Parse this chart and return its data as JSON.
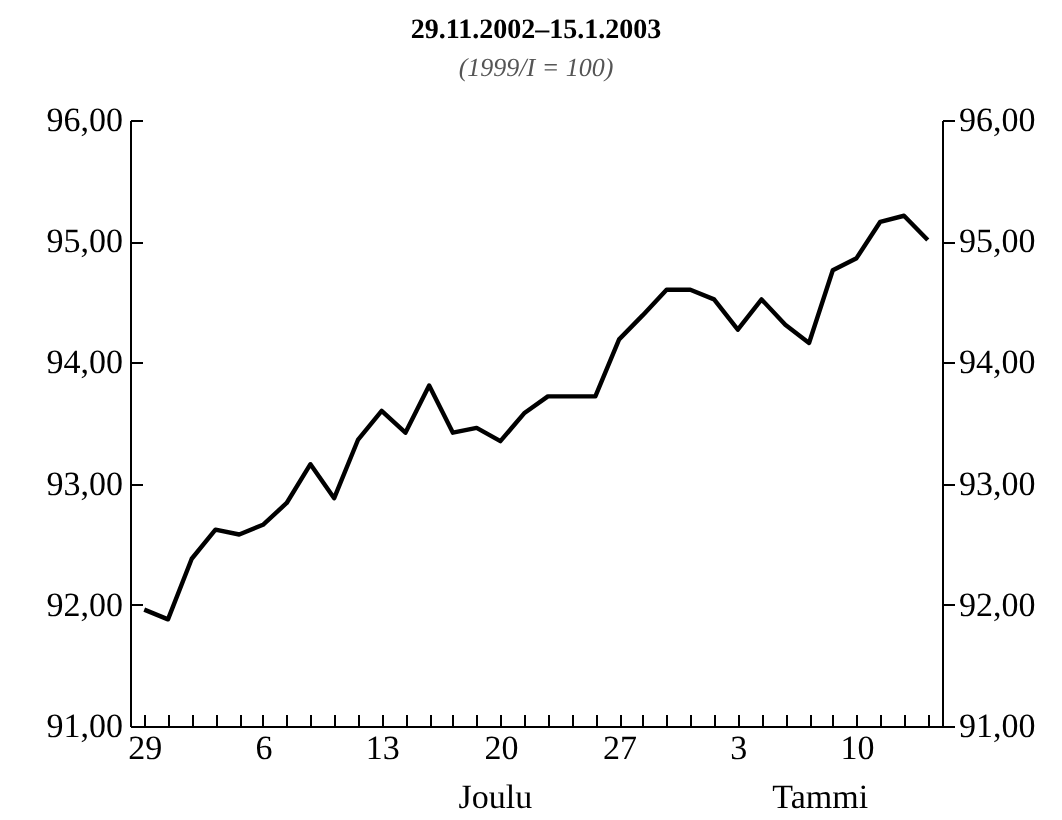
{
  "chart_data": {
    "type": "line",
    "title": "29.11.2002–15.1.2003",
    "subtitle": "(1999/I = 100)",
    "categories": [
      "29",
      null,
      null,
      null,
      null,
      "6",
      null,
      null,
      null,
      null,
      "13",
      null,
      null,
      null,
      null,
      "20",
      null,
      null,
      null,
      null,
      "27",
      null,
      null,
      null,
      null,
      "3",
      null,
      null,
      null,
      null,
      "10",
      null,
      null,
      null
    ],
    "series": [
      {
        "color": "#000000",
        "values": [
          91.96,
          91.88,
          92.38,
          92.62,
          92.58,
          92.66,
          92.84,
          93.16,
          92.88,
          93.36,
          93.6,
          93.42,
          93.81,
          93.42,
          93.46,
          93.35,
          93.58,
          93.72,
          93.72,
          93.72,
          94.19,
          94.39,
          94.6,
          94.6,
          94.52,
          94.27,
          94.52,
          94.31,
          94.16,
          94.76,
          94.86,
          95.16,
          95.21,
          95.01
        ]
      }
    ],
    "ylim": [
      91,
      96
    ],
    "yticks": [
      {
        "value": 91,
        "label": "91,00"
      },
      {
        "value": 92,
        "label": "92,00"
      },
      {
        "value": 93,
        "label": "93,00"
      },
      {
        "value": 94,
        "label": "94,00"
      },
      {
        "value": 95,
        "label": "95,00"
      },
      {
        "value": 96,
        "label": "96,00"
      }
    ],
    "y2lim": [
      91,
      96
    ],
    "y2ticks": [
      {
        "value": 91,
        "label": "91,00"
      },
      {
        "value": 92,
        "label": "92,00"
      },
      {
        "value": 93,
        "label": "93,00"
      },
      {
        "value": 94,
        "label": "94,00"
      },
      {
        "value": 95,
        "label": "95,00"
      },
      {
        "value": 96,
        "label": "96,00"
      }
    ],
    "annotations": [
      "Joulu",
      "Tammi"
    ],
    "grid": false,
    "marker": "none",
    "line_style": "solid"
  }
}
